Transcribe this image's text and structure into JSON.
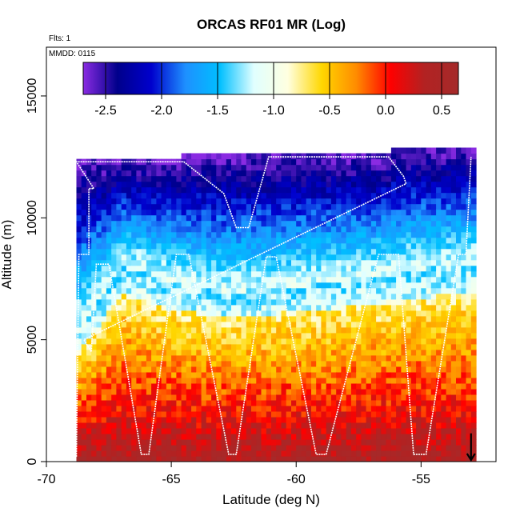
{
  "chart_data": {
    "type": "heatmap",
    "title": "ORCAS RF01 MR (Log)",
    "xlabel": "Latitude (deg N)",
    "ylabel": "Altitude (m)",
    "xlim": [
      -70,
      -52
    ],
    "ylim": [
      0,
      17000
    ],
    "x_ticks": [
      -70,
      -65,
      -60,
      -55
    ],
    "y_ticks": [
      0,
      5000,
      10000,
      15000
    ],
    "annotations": {
      "flights": "Flts: 1",
      "date": "MMDD: 0115"
    },
    "colorbar": {
      "range": [
        -2.7,
        0.65
      ],
      "ticks": [
        -2.5,
        -2.0,
        -1.5,
        -1.0,
        -0.5,
        0.0,
        0.5
      ],
      "tick_labels": [
        "-2.5",
        "-2.0",
        "-1.5",
        "-1.0",
        "-0.5",
        "0.0",
        "0.5"
      ],
      "colors": [
        "#8a2be2",
        "#00008b",
        "#0000cd",
        "#1e90ff",
        "#00bfff",
        "#e0ffff",
        "#ffffe0",
        "#ffd700",
        "#ff8c00",
        "#ff0000",
        "#b22222",
        "#a52a2a"
      ]
    },
    "field_profile": {
      "latitudes": [
        -68.8,
        -67,
        -65,
        -63,
        -61,
        -59,
        -57,
        -55,
        -53
      ],
      "boundary_altitude_m": [
        5200,
        8000,
        7200,
        6800,
        7000,
        7200,
        7500,
        7800,
        8000
      ],
      "value_at_surface": 0.45,
      "value_at_top": -2.6
    },
    "coverage": {
      "lat_left": -68.8,
      "lat_right": -52.8,
      "top_altitude_m": [
        [
          -68.8,
          12300
        ],
        [
          -64.6,
          12300
        ],
        [
          -64.6,
          12500
        ],
        [
          -56.3,
          12500
        ],
        [
          -56.3,
          12800
        ],
        [
          -52.8,
          12800
        ]
      ]
    },
    "flight_track": [
      [
        -68.8,
        200
      ],
      [
        -68.7,
        8500
      ],
      [
        -68.3,
        8500
      ],
      [
        -68.3,
        11200
      ],
      [
        -68.1,
        11200
      ],
      [
        -68.8,
        12300
      ],
      [
        -64.5,
        12300
      ],
      [
        -62.9,
        11000
      ],
      [
        -62.4,
        9600
      ],
      [
        -61.9,
        9600
      ],
      [
        -61.1,
        12500
      ],
      [
        -56.3,
        12500
      ],
      [
        -55.7,
        11700
      ],
      [
        -55.6,
        11400
      ],
      [
        -68.5,
        5000
      ],
      [
        -68.2,
        4500
      ],
      [
        -68.0,
        8100
      ],
      [
        -67.5,
        8100
      ],
      [
        -66.2,
        300
      ],
      [
        -65.9,
        300
      ],
      [
        -64.8,
        8500
      ],
      [
        -64.3,
        8500
      ],
      [
        -62.7,
        300
      ],
      [
        -62.4,
        300
      ],
      [
        -61.2,
        8400
      ],
      [
        -60.8,
        8400
      ],
      [
        -59.2,
        300
      ],
      [
        -58.8,
        300
      ],
      [
        -56.7,
        8500
      ],
      [
        -55.9,
        8500
      ],
      [
        -55.3,
        300
      ],
      [
        -54.8,
        300
      ],
      [
        -53.5,
        8500
      ],
      [
        -53.2,
        8500
      ],
      [
        -53.0,
        12500
      ]
    ],
    "marker": {
      "x": -53,
      "y_top": 700,
      "y_bottom": 0
    }
  }
}
